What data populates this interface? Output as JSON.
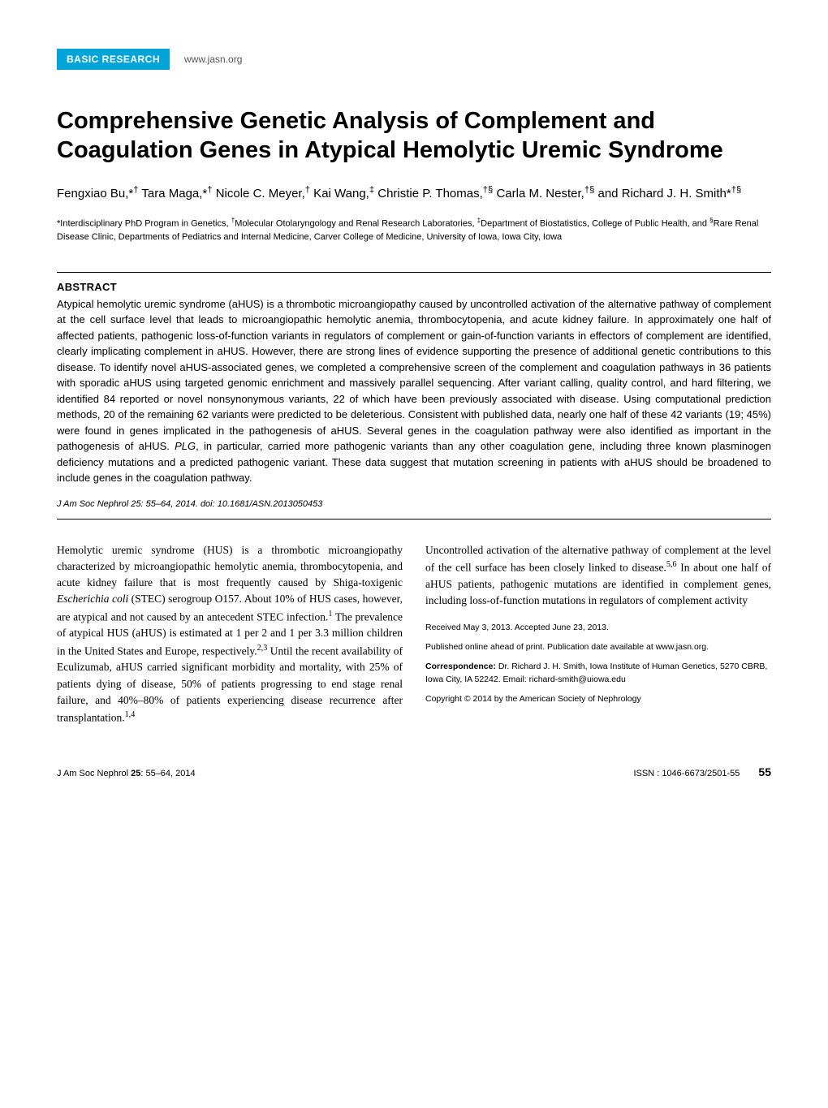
{
  "header": {
    "category": "BASIC RESEARCH",
    "website": "www.jasn.org"
  },
  "title": "Comprehensive Genetic Analysis of Complement and Coagulation Genes in Atypical Hemolytic Uremic Syndrome",
  "authors_html": "Fengxiao Bu,*<sup>†</sup> Tara Maga,*<sup>†</sup> Nicole C. Meyer,<sup>†</sup> Kai Wang,<sup>‡</sup> Christie P. Thomas,<sup>†§</sup> Carla M. Nester,<sup>†§</sup> and Richard J. H. Smith*<sup>†§</sup>",
  "affiliations_html": "*Interdisciplinary PhD Program in Genetics, <sup>†</sup>Molecular Otolaryngology and Renal Research Laboratories, <sup>‡</sup>Department of Biostatistics, College of Public Health, and <sup>§</sup>Rare Renal Disease Clinic, Departments of Pediatrics and Internal Medicine, Carver College of Medicine, University of Iowa, Iowa City, Iowa",
  "abstract": {
    "heading": "ABSTRACT",
    "body_html": "Atypical hemolytic uremic syndrome (aHUS) is a thrombotic microangiopathy caused by uncontrolled activation of the alternative pathway of complement at the cell surface level that leads to microangiopathic hemolytic anemia, thrombocytopenia, and acute kidney failure. In approximately one half of affected patients, pathogenic loss-of-function variants in regulators of complement or gain-of-function variants in effectors of complement are identified, clearly implicating complement in aHUS. However, there are strong lines of evidence supporting the presence of additional genetic contributions to this disease. To identify novel aHUS-associated genes, we completed a comprehensive screen of the complement and coagulation pathways in 36 patients with sporadic aHUS using targeted genomic enrichment and massively parallel sequencing. After variant calling, quality control, and hard filtering, we identified 84 reported or novel nonsynonymous variants, 22 of which have been previously associated with disease. Using computational prediction methods, 20 of the remaining 62 variants were predicted to be deleterious. Consistent with published data, nearly one half of these 42 variants (19; 45%) were found in genes implicated in the pathogenesis of aHUS. Several genes in the coagulation pathway were also identified as important in the pathogenesis of aHUS. <span class=\"italic\">PLG</span>, in particular, carried more pathogenic variants than any other coagulation gene, including three known plasminogen deficiency mutations and a predicted pathogenic variant. These data suggest that mutation screening in patients with aHUS should be broadened to include genes in the coagulation pathway."
  },
  "citation_html": "<span class=\"italic\">J Am Soc Nephrol</span> 25: 55–64, 2014. doi: 10.1681/ASN.2013050453",
  "body": {
    "left_html": "Hemolytic uremic syndrome (HUS) is a thrombotic microangiopathy characterized by microangiopathic hemolytic anemia, thrombocytopenia, and acute kidney failure that is most frequently caused by Shiga-toxigenic <span class=\"italic\">Escherichia coli</span> (STEC) serogroup O157. About 10% of HUS cases, however, are atypical and not caused by an antecedent STEC infection.<sup>1</sup> The prevalence of atypical HUS (aHUS) is estimated at 1 per 2 and 1 per 3.3 million children in the United States and Europe, respectively.<sup>2,3</sup> Until the recent availability of Eculizumab, aHUS carried significant morbidity and mortality, with 25% of patients dying of disease, 50% of patients progressing to end stage renal failure, and 40%–80% of patients experiencing disease recurrence after transplantation.<sup>1,4</sup>",
    "right_intro_html": "Uncontrolled activation of the alternative pathway of complement at the level of the cell surface has been closely linked to disease.<sup>5,6</sup> In about one half of aHUS patients, pathogenic mutations are identified in complement genes, including loss-of-function mutations in regulators of complement activity"
  },
  "meta": {
    "received": "Received May 3, 2013. Accepted June 23, 2013.",
    "pub_note": "Published online ahead of print. Publication date available at www.jasn.org.",
    "correspondence_label": "Correspondence:",
    "correspondence_text": " Dr. Richard J. H. Smith, Iowa Institute of Human Genetics, 5270 CBRB, Iowa City, IA 52242. Email: richard-smith@uiowa.edu",
    "copyright": "Copyright © 2014 by the American Society of Nephrology"
  },
  "footer": {
    "left_html": "J Am Soc Nephrol <b>25</b>: 55–64, 2014",
    "issn": "ISSN : 1046-6673/2501-55",
    "page": "55"
  },
  "colors": {
    "badge_bg": "#00a4d8",
    "badge_fg": "#ffffff",
    "text": "#000000",
    "background": "#ffffff"
  }
}
